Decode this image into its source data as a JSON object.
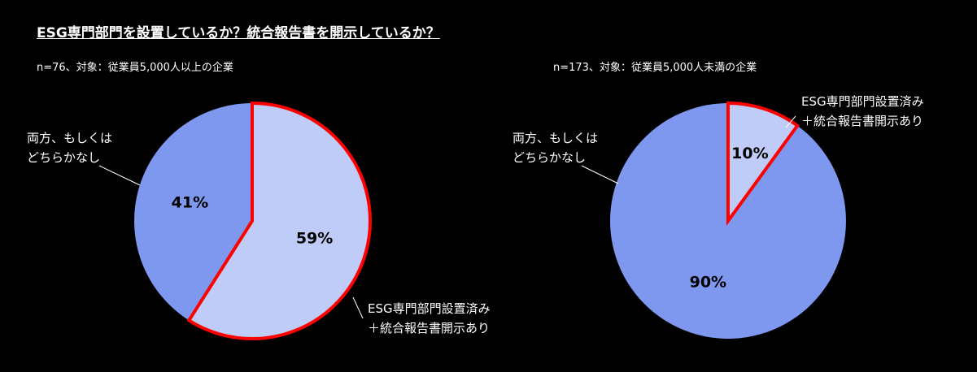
{
  "title": "ESG専門部門を設置しているか？統合報告書を開示しているか？",
  "chart_data": [
    {
      "type": "pie",
      "subtitle": "n=76、対象：従業員5,000人以上の企業",
      "categories": [
        "ESG専門部門設置済み\n＋統合報告書開示あり",
        "両方、もしくは\nどちらかなし"
      ],
      "values": [
        59,
        41
      ],
      "value_labels": [
        "59%",
        "41%"
      ],
      "colors": [
        "#c0ccf8",
        "#7e97ef"
      ],
      "highlight_color": "#ff0000"
    },
    {
      "type": "pie",
      "subtitle": "n=173、対象：従業員5,000人未満の企業",
      "categories": [
        "ESG専門部門設置済み\n＋統合報告書開示あり",
        "両方、もしくは\nどちらかなし"
      ],
      "values": [
        10,
        90
      ],
      "value_labels": [
        "10%",
        "90%"
      ],
      "colors": [
        "#c0ccf8",
        "#7e97ef"
      ],
      "highlight_color": "#ff0000"
    }
  ]
}
